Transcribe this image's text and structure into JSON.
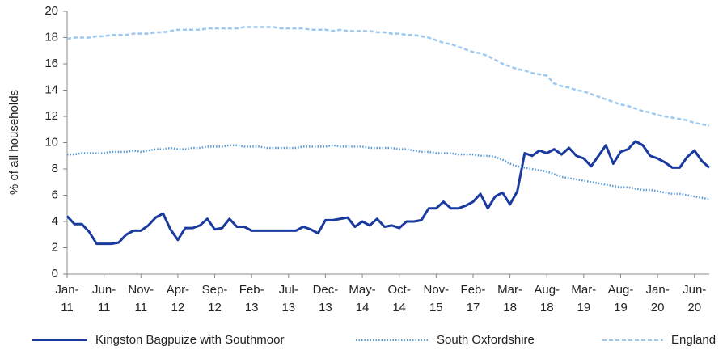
{
  "chart_data": {
    "type": "line",
    "y_label": "% of all households",
    "categories": [
      "Jan-11",
      null,
      null,
      null,
      null,
      "Jun-11",
      null,
      null,
      null,
      null,
      "Nov-11",
      null,
      null,
      null,
      null,
      "Apr-12",
      null,
      null,
      null,
      null,
      "Sep-12",
      null,
      null,
      null,
      null,
      "Feb-13",
      null,
      null,
      null,
      null,
      "Jul-13",
      null,
      null,
      null,
      null,
      "Dec-13",
      null,
      null,
      null,
      null,
      "May-14",
      null,
      null,
      null,
      null,
      "Oct-14",
      null,
      null,
      null,
      null,
      "Nov-15",
      null,
      null,
      null,
      null,
      "Feb-17",
      null,
      null,
      null,
      null,
      "Mar-18",
      null,
      null,
      null,
      null,
      "Aug-18",
      null,
      null,
      null,
      null,
      "Mar-19",
      null,
      null,
      null,
      null,
      "Aug-19",
      null,
      null,
      null,
      null,
      "Jan-20",
      null,
      null,
      null,
      null,
      "Jun-20",
      null,
      null
    ],
    "series": [
      {
        "name": "Kingston Bagpuize with Southmoor",
        "color": "#1a3a9e",
        "style": "solid",
        "values": [
          4.4,
          3.8,
          3.8,
          3.2,
          2.3,
          2.3,
          2.3,
          2.4,
          3.0,
          3.3,
          3.3,
          3.7,
          4.3,
          4.6,
          3.4,
          2.6,
          3.5,
          3.5,
          3.7,
          4.2,
          3.4,
          3.5,
          4.2,
          3.6,
          3.6,
          3.3,
          3.3,
          3.3,
          3.3,
          3.3,
          3.3,
          3.3,
          3.6,
          3.4,
          3.1,
          4.1,
          4.1,
          4.2,
          4.3,
          3.6,
          4.0,
          3.7,
          4.2,
          3.6,
          3.7,
          3.5,
          4.0,
          4.0,
          4.1,
          5.0,
          5.0,
          5.5,
          5.0,
          5.0,
          5.2,
          5.5,
          6.1,
          5.0,
          5.9,
          6.2,
          5.3,
          6.3,
          9.2,
          9.0,
          9.4,
          9.2,
          9.5,
          9.1,
          9.6,
          9.0,
          8.8,
          8.2,
          9.0,
          9.8,
          8.4,
          9.3,
          9.5,
          10.1,
          9.8,
          9.0,
          8.8,
          8.5,
          8.1,
          8.1,
          8.9,
          9.4,
          8.6,
          8.1
        ]
      },
      {
        "name": "South Oxfordshire",
        "color": "#5b9bd5",
        "style": "dotted",
        "values": [
          9.1,
          9.1,
          9.2,
          9.2,
          9.2,
          9.2,
          9.3,
          9.3,
          9.3,
          9.4,
          9.3,
          9.4,
          9.5,
          9.5,
          9.6,
          9.5,
          9.5,
          9.6,
          9.6,
          9.7,
          9.7,
          9.7,
          9.8,
          9.8,
          9.7,
          9.7,
          9.7,
          9.6,
          9.6,
          9.6,
          9.6,
          9.6,
          9.7,
          9.7,
          9.7,
          9.7,
          9.8,
          9.7,
          9.7,
          9.7,
          9.7,
          9.6,
          9.6,
          9.6,
          9.6,
          9.5,
          9.5,
          9.4,
          9.3,
          9.3,
          9.2,
          9.2,
          9.2,
          9.1,
          9.1,
          9.1,
          9.0,
          9.0,
          8.9,
          8.7,
          8.4,
          8.2,
          8.1,
          8.0,
          7.9,
          7.8,
          7.6,
          7.4,
          7.3,
          7.2,
          7.1,
          7.0,
          6.9,
          6.8,
          6.7,
          6.6,
          6.6,
          6.5,
          6.4,
          6.4,
          6.3,
          6.2,
          6.1,
          6.1,
          6.0,
          5.9,
          5.8,
          5.7
        ]
      },
      {
        "name": "England",
        "color": "#9dc8f0",
        "style": "dashed",
        "values": [
          17.9,
          18.0,
          18.0,
          18.0,
          18.1,
          18.1,
          18.2,
          18.2,
          18.2,
          18.3,
          18.3,
          18.3,
          18.4,
          18.4,
          18.5,
          18.6,
          18.6,
          18.6,
          18.6,
          18.7,
          18.7,
          18.7,
          18.7,
          18.7,
          18.8,
          18.8,
          18.8,
          18.8,
          18.8,
          18.7,
          18.7,
          18.7,
          18.7,
          18.6,
          18.6,
          18.6,
          18.5,
          18.6,
          18.5,
          18.5,
          18.5,
          18.5,
          18.4,
          18.4,
          18.3,
          18.3,
          18.2,
          18.2,
          18.1,
          18.0,
          17.8,
          17.6,
          17.5,
          17.3,
          17.1,
          16.9,
          16.8,
          16.6,
          16.3,
          16.0,
          15.8,
          15.6,
          15.5,
          15.3,
          15.2,
          15.1,
          14.5,
          14.3,
          14.2,
          14.0,
          13.9,
          13.7,
          13.5,
          13.3,
          13.1,
          12.9,
          12.8,
          12.6,
          12.4,
          12.3,
          12.1,
          12.0,
          11.9,
          11.8,
          11.7,
          11.5,
          11.4,
          11.3
        ]
      }
    ],
    "ylim": [
      0,
      20
    ],
    "yticks": [
      0,
      2,
      4,
      6,
      8,
      10,
      12,
      14,
      16,
      18,
      20
    ],
    "grid": false,
    "legend": "bottom"
  }
}
